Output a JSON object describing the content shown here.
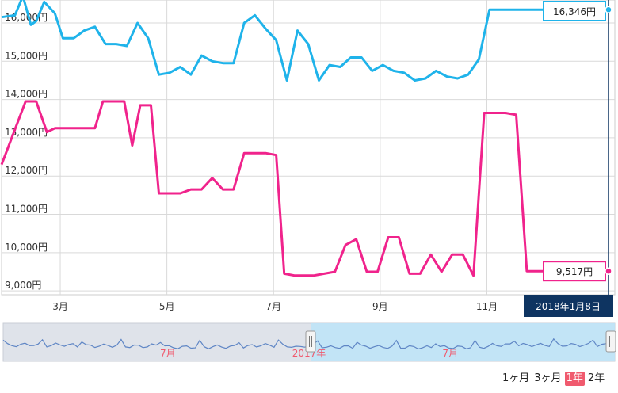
{
  "chart_data": {
    "type": "line",
    "ylim": [
      8900,
      16600
    ],
    "y_ticks": [
      9000,
      10000,
      11000,
      12000,
      13000,
      14000,
      15000,
      16000
    ],
    "y_tick_labels": [
      "9,000円",
      "10,000円",
      "11,000円",
      "12,000円",
      "13,000円",
      "14,000円",
      "15,000円",
      "16,000円"
    ],
    "x_ticks": [
      3,
      5,
      7,
      9,
      11
    ],
    "x_tick_labels": [
      "3月",
      "5月",
      "7月",
      "9月",
      "11月"
    ],
    "x_range": [
      1.9,
      13.4
    ],
    "grid": true,
    "series": [
      {
        "color": "#1fb3ea",
        "x": [
          1.9,
          2.15,
          2.3,
          2.45,
          2.55,
          2.7,
          2.9,
          3.05,
          3.25,
          3.45,
          3.65,
          3.85,
          4.05,
          4.25,
          4.45,
          4.65,
          4.85,
          5.05,
          5.25,
          5.45,
          5.65,
          5.85,
          6.05,
          6.25,
          6.45,
          6.65,
          6.85,
          7.05,
          7.25,
          7.45,
          7.65,
          7.85,
          8.05,
          8.25,
          8.45,
          8.65,
          8.85,
          9.05,
          9.25,
          9.45,
          9.65,
          9.85,
          10.05,
          10.25,
          10.45,
          10.65,
          10.85,
          11.05,
          11.25,
          11.45,
          11.65,
          11.85,
          12.05,
          12.25,
          12.45,
          12.6,
          12.75,
          12.95,
          13.15,
          13.3
        ],
        "y": [
          16150,
          16200,
          16700,
          15950,
          16050,
          16550,
          16250,
          15600,
          15600,
          15800,
          15900,
          15450,
          15450,
          15400,
          16000,
          15600,
          14650,
          14700,
          14850,
          14650,
          15150,
          15000,
          14950,
          14950,
          16000,
          16200,
          15850,
          15550,
          14500,
          15800,
          15450,
          14500,
          14900,
          14850,
          15100,
          15100,
          14750,
          14900,
          14750,
          14700,
          14500,
          14550,
          14750,
          14600,
          14550,
          14650,
          15050,
          16346,
          16346,
          16346,
          16346,
          16346,
          16346,
          16346,
          16346,
          16346,
          16346,
          16346,
          16346,
          16346
        ],
        "last_label": "16,346円"
      },
      {
        "color": "#f0238c",
        "x": [
          1.9,
          2.35,
          2.55,
          2.75,
          2.9,
          3.1,
          3.3,
          3.5,
          3.65,
          3.8,
          4.0,
          4.2,
          4.35,
          4.5,
          4.7,
          4.85,
          5.05,
          5.25,
          5.45,
          5.65,
          5.85,
          6.05,
          6.25,
          6.45,
          6.65,
          6.85,
          7.05,
          7.2,
          7.4,
          7.55,
          7.75,
          7.95,
          8.15,
          8.35,
          8.55,
          8.75,
          8.95,
          9.15,
          9.35,
          9.55,
          9.75,
          9.95,
          10.15,
          10.35,
          10.55,
          10.75,
          10.95,
          11.15,
          11.35,
          11.55,
          11.75,
          11.95,
          12.15,
          12.35,
          12.55,
          12.75,
          12.95,
          13.15,
          13.3
        ],
        "y": [
          12300,
          13950,
          13950,
          13150,
          13250,
          13250,
          13250,
          13250,
          13250,
          13950,
          13950,
          13950,
          12800,
          13850,
          13850,
          11550,
          11550,
          11550,
          11650,
          11650,
          11950,
          11650,
          11650,
          12600,
          12600,
          12600,
          12550,
          9450,
          9400,
          9400,
          9400,
          9450,
          9500,
          10200,
          10350,
          9500,
          9500,
          10400,
          10400,
          9450,
          9450,
          9950,
          9500,
          9950,
          9950,
          9400,
          13650,
          13650,
          13650,
          13600,
          9517,
          9517,
          9517,
          9517,
          9517,
          9517,
          9517,
          9517,
          9517
        ],
        "last_label": "9,517円"
      }
    ],
    "cursor_label": "2018年1月8日",
    "navigator": {
      "labels": [
        "7月",
        "2017年",
        "7月"
      ],
      "label_x": [
        7,
        13,
        19
      ]
    }
  },
  "range_selector": {
    "buttons": [
      "1ヶ月",
      "3ヶ月",
      "1年",
      "2年"
    ],
    "active_index": 2
  },
  "colors": {
    "blue": "#1fb3ea",
    "pink": "#f0238c",
    "grid": "#d9d9d9",
    "cursor": "#0e3461",
    "active": "#f05a6e"
  }
}
